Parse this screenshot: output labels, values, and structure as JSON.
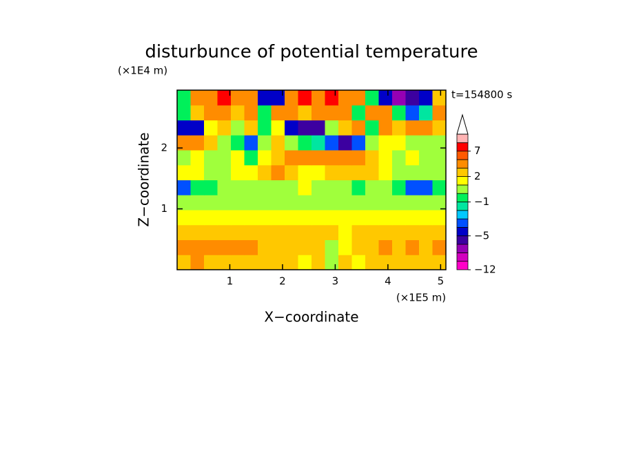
{
  "chart_data": {
    "type": "contour",
    "title": "disturbunce of potential temperature",
    "y_unit": "(×1E4 m)",
    "x_unit": "(×1E5 m)",
    "xlabel": "X−coordinate",
    "ylabel": "Z−coordinate",
    "annotation": "t=154800 s",
    "xlim": [
      0,
      5.1
    ],
    "ylim": [
      0,
      2.95
    ],
    "xticks": [
      1,
      2,
      3,
      4,
      5
    ],
    "yticks": [
      1,
      2
    ],
    "field": [
      [
        2.5,
        3,
        2.5,
        2.5,
        2.5,
        2,
        2,
        2.5,
        2.5,
        1.5,
        2,
        0.5,
        2,
        1.5,
        2.5,
        2,
        2.5,
        2,
        2.5,
        2
      ],
      [
        3,
        3,
        3.5,
        3,
        3,
        3.5,
        2.5,
        2.5,
        2,
        2.5,
        2,
        0.5,
        1.5,
        2.5,
        2,
        3,
        2.5,
        3,
        2.5,
        3
      ],
      [
        2,
        2,
        2.5,
        2,
        2,
        2,
        2,
        2,
        2,
        2,
        2,
        2,
        1.5,
        2,
        2,
        2,
        2,
        2.5,
        2,
        2
      ],
      [
        1.5,
        1.5,
        1.5,
        1.5,
        1.5,
        1.5,
        1.5,
        1.5,
        1.5,
        1.5,
        1.5,
        1.5,
        1.5,
        1.5,
        1.5,
        1.5,
        1.5,
        1.5,
        1.5,
        1.5
      ],
      [
        0.5,
        0.5,
        0.2,
        0.5,
        0.5,
        0.5,
        0.2,
        0.5,
        0.5,
        0.5,
        0.5,
        0.5,
        0.5,
        0.2,
        0.5,
        0.5,
        0.5,
        0.5,
        0.2,
        0.5
      ],
      [
        -3.5,
        -0.5,
        -0.5,
        0.5,
        0.5,
        0.5,
        0.5,
        0.5,
        0.5,
        1.5,
        0.5,
        0.5,
        0.5,
        -0.5,
        0.5,
        0.5,
        -0.5,
        -3.5,
        -3.5,
        -0.5
      ],
      [
        1.5,
        1.5,
        0.5,
        0.5,
        1.5,
        1.5,
        2.5,
        3,
        2.5,
        1.5,
        1.5,
        2.5,
        2.5,
        2.5,
        2.5,
        1.5,
        0.5,
        0.5,
        0.5,
        0.5
      ],
      [
        0.5,
        1.5,
        0.5,
        0.5,
        1.5,
        -0.5,
        1.5,
        2.5,
        4,
        4,
        4,
        4,
        4,
        3,
        2.5,
        1.5,
        0.5,
        1.5,
        0.5,
        0.5
      ],
      [
        4,
        4,
        2.5,
        0.5,
        -0.5,
        -3.5,
        0.5,
        2.5,
        0.5,
        -0.5,
        -1.5,
        -4,
        -5.5,
        -4,
        0.5,
        1.5,
        1.5,
        0.5,
        0.5,
        0.5
      ],
      [
        -4.5,
        -4.5,
        1.5,
        2.5,
        0.5,
        2.5,
        -0.5,
        1.5,
        -4.5,
        -5.5,
        -5.5,
        0.5,
        2.5,
        3,
        -0.5,
        4,
        2.5,
        4,
        4,
        2.5
      ],
      [
        -0.5,
        2.5,
        4,
        4,
        2.5,
        4,
        -0.5,
        4,
        4,
        2.5,
        4,
        4,
        4,
        -0.5,
        4,
        4,
        -0.5,
        -3.5,
        -1.5,
        4
      ],
      [
        -0.5,
        4,
        4,
        8,
        4,
        4,
        -4.5,
        -4.5,
        4,
        8,
        4,
        8,
        4,
        4,
        -0.5,
        -5,
        -7,
        -6,
        -4.5,
        2.5
      ]
    ],
    "levels": [
      -12,
      -10,
      -8,
      -6,
      -5,
      -4,
      -3,
      -2,
      -1,
      0,
      1,
      2,
      3,
      5,
      7,
      9,
      11
    ],
    "colors": [
      "#ff00c8",
      "#d200be",
      "#9600b4",
      "#3c00a0",
      "#0000c8",
      "#0050ff",
      "#00c8ff",
      "#00e6a0",
      "#00f05a",
      "#a0ff3c",
      "#ffff00",
      "#ffc800",
      "#ff8c00",
      "#ff5a00",
      "#ff0000",
      "#ffb4b4"
    ],
    "colorbar_ticks": [
      {
        "value": -12,
        "label": "−12"
      },
      {
        "value": -5,
        "label": "−5"
      },
      {
        "value": -1,
        "label": "−1"
      },
      2,
      7
    ]
  }
}
